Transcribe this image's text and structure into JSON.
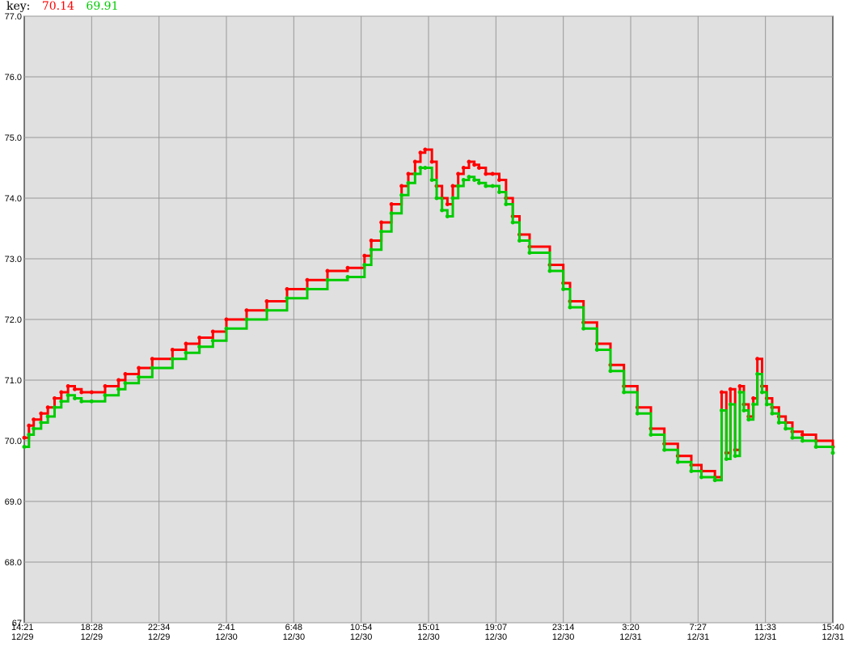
{
  "legend": {
    "label": "key:",
    "items": [
      {
        "value": "70.14",
        "color": "#ff0000"
      },
      {
        "value": "69.91",
        "color": "#00cc00"
      }
    ]
  },
  "chart_data": {
    "type": "line",
    "ylim": [
      67,
      77
    ],
    "y_ticks": [
      "77.0",
      "76.0",
      "75.0",
      "74.0",
      "73.0",
      "72.0",
      "71.0",
      "70.0",
      "69.0",
      "68.0",
      "67"
    ],
    "x_ticks": [
      {
        "time": "14:21",
        "date": "12/29"
      },
      {
        "time": "18:28",
        "date": "12/29"
      },
      {
        "time": "22:34",
        "date": "12/29"
      },
      {
        "time": "2:41",
        "date": "12/30"
      },
      {
        "time": "6:48",
        "date": "12/30"
      },
      {
        "time": "10:54",
        "date": "12/30"
      },
      {
        "time": "15:01",
        "date": "12/30"
      },
      {
        "time": "19:07",
        "date": "12/30"
      },
      {
        "time": "23:14",
        "date": "12/30"
      },
      {
        "time": "3:20",
        "date": "12/31"
      },
      {
        "time": "7:27",
        "date": "12/31"
      },
      {
        "time": "11:33",
        "date": "12/31"
      },
      {
        "time": "15:40",
        "date": "12/31"
      }
    ],
    "grid": true,
    "background": "#e0e0e0",
    "series": [
      {
        "color": "#ff0000",
        "x": [
          0,
          0.07,
          0.14,
          0.25,
          0.35,
          0.45,
          0.55,
          0.65,
          0.75,
          0.85,
          1.0,
          1.2,
          1.4,
          1.5,
          1.7,
          1.9,
          2.2,
          2.4,
          2.6,
          2.8,
          3.0,
          3.3,
          3.6,
          3.9,
          4.2,
          4.5,
          4.8,
          5.05,
          5.15,
          5.3,
          5.45,
          5.6,
          5.7,
          5.8,
          5.88,
          5.95,
          6.05,
          6.12,
          6.2,
          6.28,
          6.36,
          6.44,
          6.52,
          6.6,
          6.68,
          6.75,
          6.85,
          6.95,
          7.05,
          7.15,
          7.25,
          7.35,
          7.5,
          7.8,
          8.0,
          8.1,
          8.3,
          8.5,
          8.7,
          8.9,
          9.1,
          9.3,
          9.5,
          9.7,
          9.9,
          10.05,
          10.25,
          10.35,
          10.42,
          10.48,
          10.55,
          10.62,
          10.68,
          10.75,
          10.82,
          10.88,
          10.95,
          11.02,
          11.1,
          11.2,
          11.3,
          11.4,
          11.55,
          11.75,
          12.0
        ],
        "y": [
          70.05,
          70.25,
          70.35,
          70.45,
          70.55,
          70.7,
          70.8,
          70.9,
          70.85,
          70.8,
          70.8,
          70.9,
          71.0,
          71.1,
          71.2,
          71.35,
          71.5,
          71.6,
          71.7,
          71.8,
          72.0,
          72.15,
          72.3,
          72.5,
          72.65,
          72.8,
          72.85,
          73.05,
          73.3,
          73.6,
          73.9,
          74.2,
          74.4,
          74.6,
          74.75,
          74.8,
          74.6,
          74.2,
          74.0,
          73.9,
          74.2,
          74.4,
          74.5,
          74.6,
          74.55,
          74.5,
          74.4,
          74.4,
          74.3,
          74.0,
          73.7,
          73.4,
          73.2,
          72.9,
          72.6,
          72.3,
          71.95,
          71.6,
          71.25,
          70.9,
          70.55,
          70.2,
          69.95,
          69.75,
          69.6,
          69.5,
          69.4,
          70.8,
          69.8,
          70.85,
          69.85,
          70.9,
          70.6,
          70.4,
          70.7,
          71.35,
          70.9,
          70.7,
          70.55,
          70.4,
          70.3,
          70.15,
          70.1,
          70.0,
          69.9
        ]
      },
      {
        "color": "#00cc00",
        "x": [
          0,
          0.07,
          0.14,
          0.25,
          0.35,
          0.45,
          0.55,
          0.65,
          0.75,
          0.85,
          1.0,
          1.2,
          1.4,
          1.5,
          1.7,
          1.9,
          2.2,
          2.4,
          2.6,
          2.8,
          3.0,
          3.3,
          3.6,
          3.9,
          4.2,
          4.5,
          4.8,
          5.05,
          5.15,
          5.3,
          5.45,
          5.6,
          5.7,
          5.8,
          5.88,
          5.95,
          6.05,
          6.12,
          6.2,
          6.28,
          6.36,
          6.44,
          6.52,
          6.6,
          6.68,
          6.75,
          6.85,
          6.95,
          7.05,
          7.15,
          7.25,
          7.35,
          7.5,
          7.8,
          8.0,
          8.1,
          8.3,
          8.5,
          8.7,
          8.9,
          9.1,
          9.3,
          9.5,
          9.7,
          9.9,
          10.05,
          10.25,
          10.35,
          10.42,
          10.48,
          10.55,
          10.62,
          10.68,
          10.75,
          10.82,
          10.88,
          10.95,
          11.02,
          11.1,
          11.2,
          11.3,
          11.4,
          11.55,
          11.75,
          12.0
        ],
        "y": [
          69.9,
          70.1,
          70.2,
          70.3,
          70.4,
          70.55,
          70.65,
          70.75,
          70.7,
          70.65,
          70.65,
          70.75,
          70.85,
          70.95,
          71.05,
          71.2,
          71.35,
          71.45,
          71.55,
          71.65,
          71.85,
          72.0,
          72.15,
          72.35,
          72.5,
          72.65,
          72.7,
          72.9,
          73.15,
          73.45,
          73.75,
          74.05,
          74.25,
          74.4,
          74.5,
          74.5,
          74.3,
          74.0,
          73.8,
          73.7,
          74.0,
          74.2,
          74.3,
          74.35,
          74.3,
          74.25,
          74.2,
          74.2,
          74.1,
          73.9,
          73.6,
          73.3,
          73.1,
          72.8,
          72.5,
          72.2,
          71.85,
          71.5,
          71.15,
          70.8,
          70.45,
          70.1,
          69.85,
          69.65,
          69.5,
          69.4,
          69.35,
          70.5,
          69.7,
          70.6,
          69.75,
          70.8,
          70.5,
          70.35,
          70.6,
          71.1,
          70.8,
          70.6,
          70.45,
          70.3,
          70.2,
          70.05,
          70.0,
          69.9,
          69.8
        ]
      }
    ]
  }
}
